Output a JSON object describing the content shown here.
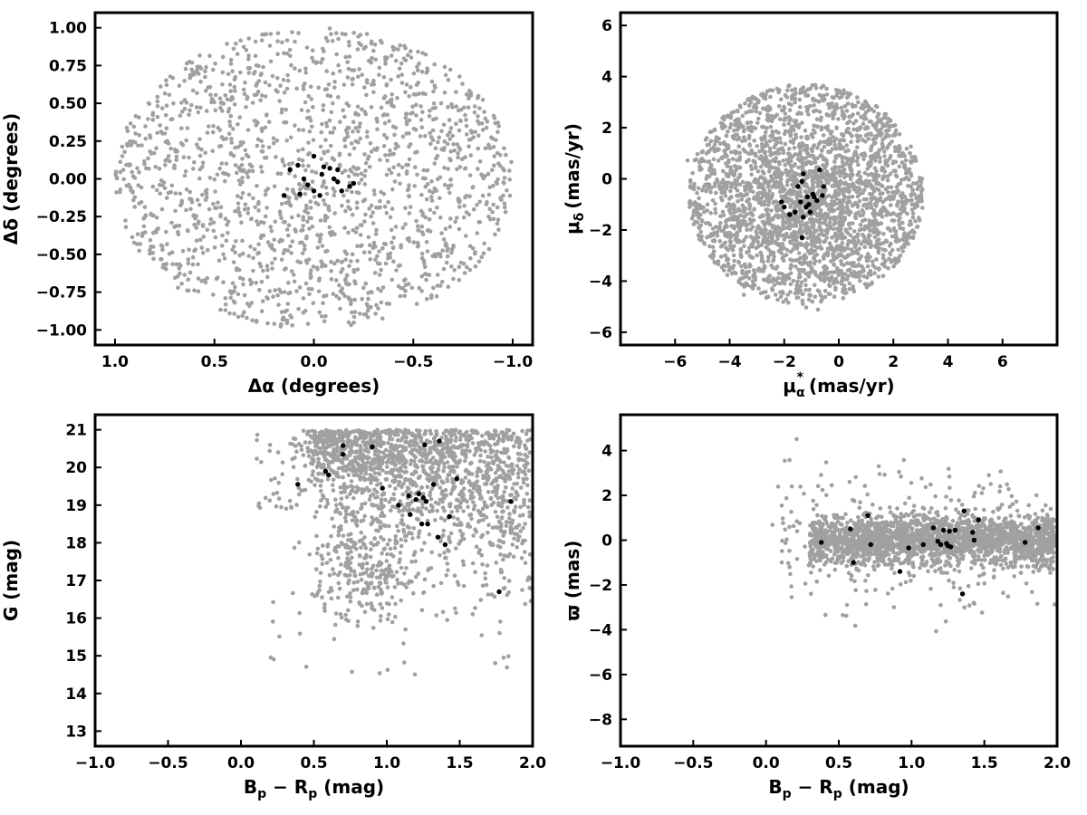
{
  "chart_data": [
    {
      "type": "scatter",
      "xlabel": "Δα (degrees)",
      "ylabel": "Δδ (degrees)",
      "xlim": [
        1.1,
        -1.1
      ],
      "ylim": [
        -1.1,
        1.1
      ],
      "xticks": [
        1.0,
        0.5,
        0.0,
        -0.5,
        -1.0
      ],
      "xtick_labels": [
        "1.0",
        "0.5",
        "0.0",
        "−0.5",
        "−1.0"
      ],
      "yticks": [
        -1.0,
        -0.75,
        -0.5,
        -0.25,
        0.0,
        0.25,
        0.5,
        0.75,
        1.0
      ],
      "ytick_labels": [
        "−1.00",
        "−0.75",
        "−0.50",
        "−0.25",
        "0.00",
        "0.25",
        "0.50",
        "0.75",
        "1.00"
      ],
      "grid": false,
      "field_distribution": {
        "shape": "disk",
        "center": [
          0.0,
          0.0
        ],
        "radius": 1.0,
        "count": 1700
      },
      "colors": {
        "field": "#a0a0a0",
        "members": "#000000"
      },
      "member_points": [
        [
          0.12,
          0.06
        ],
        [
          0.08,
          0.09
        ],
        [
          0.05,
          0.0
        ],
        [
          0.03,
          -0.04
        ],
        [
          0.07,
          -0.1
        ],
        [
          0.0,
          -0.08
        ],
        [
          -0.03,
          -0.11
        ],
        [
          0.0,
          0.15
        ],
        [
          -0.04,
          0.03
        ],
        [
          -0.08,
          0.07
        ],
        [
          -0.1,
          0.0
        ],
        [
          -0.12,
          -0.02
        ],
        [
          -0.12,
          0.06
        ],
        [
          -0.14,
          -0.08
        ],
        [
          -0.18,
          -0.05
        ],
        [
          -0.2,
          -0.03
        ],
        [
          0.15,
          -0.11
        ],
        [
          -0.05,
          0.08
        ]
      ]
    },
    {
      "type": "scatter",
      "xlabel_main": "μ",
      "xlabel_sub": "α",
      "xlabel_sup": "*",
      "xlabel_unit": "(mas/yr)",
      "ylabel_main": "μ",
      "ylabel_sub": "δ",
      "ylabel_unit": "(mas/yr)",
      "xlim": [
        -8,
        8
      ],
      "ylim": [
        -6.5,
        6.5
      ],
      "xticks": [
        -6,
        -4,
        -2,
        0,
        2,
        4,
        6
      ],
      "xtick_labels": [
        "−6",
        "−4",
        "−2",
        "0",
        "2",
        "4",
        "6"
      ],
      "yticks": [
        -6,
        -4,
        -2,
        0,
        2,
        4,
        6
      ],
      "ytick_labels": [
        "−6",
        "−4",
        "−2",
        "0",
        "2",
        "4",
        "6"
      ],
      "grid": false,
      "field_distribution": {
        "shape": "disk",
        "center": [
          -1.2,
          -0.6
        ],
        "radius": 4.3,
        "count": 2300
      },
      "colors": {
        "field": "#a0a0a0",
        "members": "#000000"
      },
      "member_points": [
        [
          -2.1,
          -0.9
        ],
        [
          -2.0,
          -1.1
        ],
        [
          -1.8,
          -1.4
        ],
        [
          -1.6,
          -1.3
        ],
        [
          -1.5,
          -0.3
        ],
        [
          -1.4,
          -0.9
        ],
        [
          -1.3,
          0.2
        ],
        [
          -1.35,
          -0.1
        ],
        [
          -1.2,
          -1.1
        ],
        [
          -1.15,
          -0.7
        ],
        [
          -1.1,
          -1.0
        ],
        [
          -1.05,
          -1.3
        ],
        [
          -0.9,
          -0.7
        ],
        [
          -0.8,
          -0.85
        ],
        [
          -0.7,
          0.35
        ],
        [
          -0.6,
          -0.65
        ],
        [
          -0.55,
          -0.3
        ],
        [
          -1.35,
          -2.3
        ],
        [
          -1.3,
          -1.5
        ],
        [
          -0.95,
          -0.6
        ]
      ]
    },
    {
      "type": "scatter",
      "xlabel_main": "B",
      "xlabel_sub1": "p",
      "xlabel_mid": " − R",
      "xlabel_sub2": "p",
      "xlabel_unit": " (mag)",
      "ylabel": "G (mag)",
      "xlim": [
        -1.0,
        2.0
      ],
      "ylim": [
        12.6,
        21.4
      ],
      "xticks": [
        -1.0,
        -0.5,
        0.0,
        0.5,
        1.0,
        1.5,
        2.0
      ],
      "xtick_labels": [
        "−1.0",
        "−0.5",
        "0.0",
        "0.5",
        "1.0",
        "1.5",
        "2.0"
      ],
      "yticks": [
        13,
        14,
        15,
        16,
        17,
        18,
        19,
        20,
        21
      ],
      "ytick_labels": [
        "13",
        "14",
        "15",
        "16",
        "17",
        "18",
        "19",
        "20",
        "21"
      ],
      "grid": false,
      "colors": {
        "field": "#a0a0a0",
        "members": "#000000"
      },
      "member_points": [
        [
          0.39,
          19.55
        ],
        [
          0.58,
          19.9
        ],
        [
          0.6,
          19.8
        ],
        [
          0.7,
          20.58
        ],
        [
          0.7,
          20.35
        ],
        [
          0.9,
          20.55
        ],
        [
          0.97,
          19.45
        ],
        [
          1.08,
          19.0
        ],
        [
          1.15,
          19.25
        ],
        [
          1.2,
          19.15
        ],
        [
          1.22,
          19.3
        ],
        [
          1.24,
          18.5
        ],
        [
          1.25,
          19.2
        ],
        [
          1.26,
          20.6
        ],
        [
          1.28,
          18.5
        ],
        [
          1.32,
          19.55
        ],
        [
          1.35,
          18.15
        ],
        [
          1.36,
          20.7
        ],
        [
          1.4,
          17.95
        ],
        [
          1.43,
          18.7
        ],
        [
          1.48,
          19.7
        ],
        [
          1.77,
          16.7
        ],
        [
          1.85,
          19.1
        ],
        [
          1.27,
          19.1
        ],
        [
          1.16,
          18.75
        ]
      ]
    },
    {
      "type": "scatter",
      "xlabel_main": "B",
      "xlabel_sub1": "p",
      "xlabel_mid": " − R",
      "xlabel_sub2": "p",
      "xlabel_unit": " (mag)",
      "ylabel": "ϖ (mas)",
      "xlim": [
        -1.0,
        2.0
      ],
      "ylim": [
        -9.2,
        5.6
      ],
      "xticks": [
        -1.0,
        -0.5,
        0.0,
        0.5,
        1.0,
        1.5,
        2.0
      ],
      "xtick_labels": [
        "−1.0",
        "−0.5",
        "0.0",
        "0.5",
        "1.0",
        "1.5",
        "2.0"
      ],
      "yticks": [
        -8,
        -6,
        -4,
        -2,
        0,
        2,
        4
      ],
      "ytick_labels": [
        "−8",
        "−6",
        "−4",
        "−2",
        "0",
        "2",
        "4"
      ],
      "grid": false,
      "colors": {
        "field": "#a0a0a0",
        "members": "#000000"
      },
      "member_points": [
        [
          0.38,
          -0.1
        ],
        [
          0.58,
          0.5
        ],
        [
          0.6,
          -1.0
        ],
        [
          0.7,
          1.1
        ],
        [
          0.72,
          -0.2
        ],
        [
          0.92,
          -1.4
        ],
        [
          0.98,
          -0.35
        ],
        [
          1.08,
          -0.2
        ],
        [
          1.15,
          0.55
        ],
        [
          1.18,
          -0.05
        ],
        [
          1.2,
          -0.2
        ],
        [
          1.22,
          0.45
        ],
        [
          1.25,
          -0.25
        ],
        [
          1.26,
          0.4
        ],
        [
          1.3,
          0.45
        ],
        [
          1.35,
          -2.4
        ],
        [
          1.36,
          1.3
        ],
        [
          1.42,
          0.35
        ],
        [
          1.43,
          0.0
        ],
        [
          1.46,
          0.9
        ],
        [
          1.78,
          -0.1
        ],
        [
          1.87,
          0.55
        ],
        [
          1.24,
          -0.15
        ],
        [
          1.27,
          -0.3
        ]
      ]
    }
  ]
}
